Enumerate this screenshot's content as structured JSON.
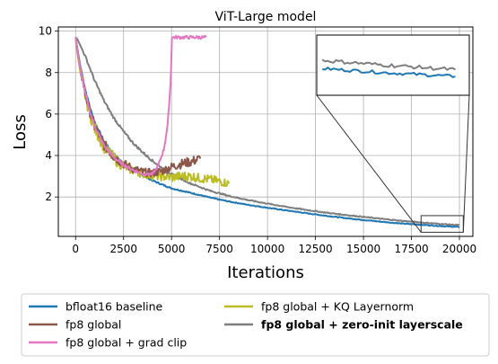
{
  "chart_data": {
    "type": "line",
    "title": "ViT-Large model",
    "xlabel": "Iterations",
    "ylabel": "Loss",
    "xlim": [
      -900,
      20700
    ],
    "ylim": [
      0.1,
      10.2
    ],
    "x_ticks": [
      0,
      2500,
      5000,
      7500,
      10000,
      12500,
      15000,
      17500,
      20000
    ],
    "y_ticks": [
      2,
      4,
      6,
      8,
      10
    ],
    "grid": true,
    "legend_position": "below",
    "series": [
      {
        "name": "bfloat16 baseline",
        "color": "#1f77b4",
        "x": [
          0,
          100,
          250,
          500,
          750,
          1000,
          1500,
          2000,
          2500,
          3000,
          3500,
          4000,
          4500,
          5000,
          6000,
          7000,
          8000,
          9000,
          10000,
          11000,
          12000,
          13000,
          14000,
          15000,
          16000,
          17000,
          18000,
          19000,
          20000
        ],
        "y": [
          9.7,
          9.1,
          8.3,
          7.2,
          6.3,
          5.6,
          4.65,
          4.05,
          3.6,
          3.3,
          3.05,
          2.8,
          2.6,
          2.42,
          2.2,
          1.97,
          1.78,
          1.62,
          1.48,
          1.35,
          1.22,
          1.1,
          0.99,
          0.89,
          0.8,
          0.72,
          0.66,
          0.6,
          0.55
        ],
        "noise": 0.05
      },
      {
        "name": "fp8 global",
        "color": "#8c564b",
        "x": [
          0,
          100,
          250,
          500,
          750,
          1000,
          1500,
          2000,
          2500,
          3000,
          3500,
          4000,
          4500,
          5000,
          5500,
          6000,
          6500
        ],
        "y": [
          9.7,
          9.0,
          8.2,
          7.0,
          6.1,
          5.4,
          4.5,
          3.95,
          3.6,
          3.35,
          3.2,
          3.15,
          3.25,
          3.45,
          3.6,
          3.7,
          3.85
        ],
        "noise": 0.25
      },
      {
        "name": "fp8 global + grad clip",
        "color": "#e377c2",
        "x": [
          0,
          100,
          250,
          500,
          750,
          1000,
          1500,
          2000,
          2500,
          3000,
          3500,
          4000,
          4300,
          4600,
          4800,
          4950,
          5020,
          5200,
          6000,
          6800
        ],
        "y": [
          9.7,
          9.0,
          8.2,
          7.0,
          6.1,
          5.4,
          4.45,
          3.9,
          3.55,
          3.3,
          3.1,
          3.1,
          3.5,
          4.3,
          5.5,
          7.5,
          9.7,
          9.7,
          9.7,
          9.7
        ],
        "noise": 0.08
      },
      {
        "name": "fp8 global + KQ Layernorm",
        "color": "#bcbd22",
        "x": [
          0,
          100,
          250,
          500,
          750,
          1000,
          1500,
          2000,
          2500,
          3000,
          3500,
          4000,
          4500,
          5000,
          5500,
          6000,
          6500,
          7000,
          7500,
          8000
        ],
        "y": [
          9.7,
          8.9,
          8.0,
          6.9,
          6.0,
          5.3,
          4.4,
          3.85,
          3.5,
          3.3,
          3.15,
          3.05,
          3.0,
          2.95,
          3.0,
          3.0,
          2.9,
          2.85,
          2.75,
          2.65
        ],
        "noise": 0.3
      },
      {
        "name": "fp8 global + zero-init layerscale",
        "color": "#7f7f7f",
        "bold": true,
        "x": [
          0,
          100,
          250,
          500,
          750,
          1000,
          1500,
          2000,
          2500,
          3000,
          3500,
          4000,
          4500,
          5000,
          6000,
          7000,
          8000,
          9000,
          10000,
          11000,
          12000,
          13000,
          14000,
          15000,
          16000,
          17000,
          18000,
          19000,
          20000
        ],
        "y": [
          9.7,
          9.6,
          9.3,
          8.8,
          8.2,
          7.6,
          6.6,
          5.8,
          5.15,
          4.6,
          4.15,
          3.75,
          3.4,
          3.1,
          2.65,
          2.3,
          2.05,
          1.85,
          1.68,
          1.52,
          1.38,
          1.25,
          1.14,
          1.04,
          0.94,
          0.85,
          0.77,
          0.7,
          0.64
        ],
        "noise": 0.06
      }
    ]
  }
}
